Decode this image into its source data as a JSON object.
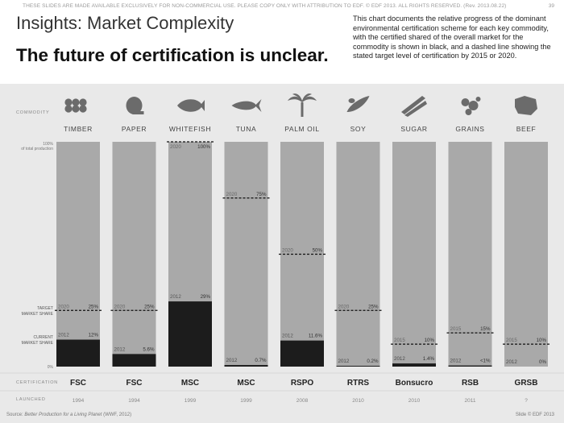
{
  "header": {
    "disclaimer": "THESE SLIDES ARE MADE AVAILABLE EXCLUSIVELY FOR NON-COMMERCIAL USE. PLEASE COPY ONLY WITH ATTRIBUTION TO EDF. © EDF 2013. ALL RIGHTS RESERVED. (Rev. 2013.08.22)",
    "page_number": "39",
    "title": "Insights: Market Complexity",
    "subtitle": "The future of certification is unclear.",
    "description": "This chart documents the relative progress of the dominant environmental certification scheme for each key commodity, with the certified shared of the overall market for the commodity is shown in black, and a dashed line showing the stated target level of certification by 2015 or 2020."
  },
  "footer": {
    "source_prefix": "Source: ",
    "source_title": "Better Production for a Living Planet",
    "source_suffix": " (WWF, 2012)",
    "slide_credit": "Slide © EDF 2013"
  },
  "row_labels": {
    "commodity": "COMMODITY",
    "top_axis_line1": "100%",
    "top_axis_line2": "of total production",
    "target_line1": "TARGET",
    "target_line2": "MARKET SHARE",
    "current_line1": "CURRENT",
    "current_line2": "MARKET SHARE",
    "zero": "0%",
    "certification": "CERTIFICATION",
    "launched": "LAUNCHED"
  },
  "chart_data": {
    "type": "bar",
    "ylim": [
      0,
      100
    ],
    "bar_colors": {
      "background": "#a9a9a9",
      "current": "#1c1c1c"
    },
    "icons": [
      "timber-icon",
      "paper-icon",
      "whitefish-icon",
      "tuna-icon",
      "palm-oil-icon",
      "soy-icon",
      "sugar-icon",
      "grains-icon",
      "beef-icon"
    ],
    "categories": [
      "TIMBER",
      "PAPER",
      "WHITEFISH",
      "TUNA",
      "PALM OIL",
      "SOY",
      "SUGAR",
      "GRAINS",
      "BEEF"
    ],
    "current_year": "2012",
    "current": [
      12,
      5.6,
      29,
      0.7,
      11.6,
      0.2,
      1.4,
      0.5,
      0
    ],
    "current_labels": [
      "12%",
      "5.6%",
      "29%",
      "0.7%",
      "11.6%",
      "0.2%",
      "1.4%",
      "<1%",
      "0%"
    ],
    "target_years": [
      "2020",
      "2020",
      "2020",
      "2020",
      "2020",
      "2020",
      "2015",
      "2015",
      "2015"
    ],
    "target": [
      25,
      25,
      100,
      75,
      50,
      25,
      10,
      15,
      10
    ],
    "target_labels": [
      "25%",
      "25%",
      "100%",
      "75%",
      "50%",
      "25%",
      "10%",
      "15%",
      "10%"
    ],
    "certification": [
      "FSC",
      "FSC",
      "MSC",
      "MSC",
      "RSPO",
      "RTRS",
      "Bonsucro",
      "RSB",
      "GRSB"
    ],
    "launched": [
      "1994",
      "1994",
      "1999",
      "1999",
      "2008",
      "2010",
      "2010",
      "2011",
      "?"
    ]
  }
}
